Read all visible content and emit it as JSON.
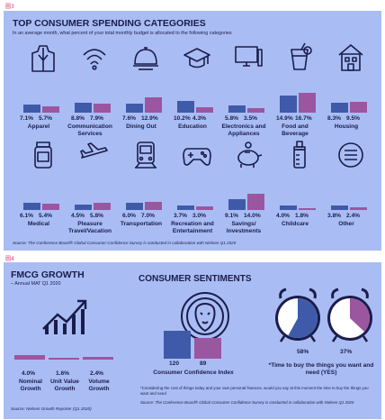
{
  "figure_labels": [
    "圖3",
    "圖4"
  ],
  "spending": {
    "title": "TOP CONSUMER SPENDING CATEGORIES",
    "subtitle": "In an average month, what percent of your total monthly budget is allocated to the following categories",
    "source": "Source: The Conference Board® Global Consumer Confidence Survey is conducted in collaboration with Nielsen Q1 2020"
  },
  "fmcg": {
    "title": "FMCG GROWTH",
    "subtitle": "– Annual MAT Q1 2020",
    "source": "Source: Nielsen Growth Reporter (Q1 2020)"
  },
  "sentiments": {
    "title": "CONSUMER SENTIMENTS",
    "cci_label": "Consumer Confidence Index",
    "time_label": "*Time to buy the things you want and need (YES)",
    "footnote": "*Considering the cost of things today and your own personal finances, would you say at this moment the time to buy the things you want and need",
    "source": "Source: The Conference Board® Global Consumer Confidence Survey is conducted in collaboration with Nielsen Q1 2020"
  },
  "colors": {
    "panel": "#a9bdf4",
    "series_1": "#3f5aa8",
    "series_2": "#9b56a0",
    "clock_bg": "#ffffff"
  },
  "chart_data": [
    {
      "type": "bar",
      "title": "TOP CONSUMER SPENDING CATEGORIES",
      "categories": [
        "Apparel",
        "Communication Services",
        "Dining Out",
        "Education",
        "Electronics and Appliances",
        "Food and Beverage",
        "Housing",
        "Medical",
        "Pleasure Travel/Vacation",
        "Transportation",
        "Recreation and Entertainment",
        "Savings/ Investments",
        "Childcare",
        "Other"
      ],
      "category_lines": [
        [
          "Apparel"
        ],
        [
          "Communication",
          "Services"
        ],
        [
          "Dining Out"
        ],
        [
          "Education"
        ],
        [
          "Electronics and",
          "Appliances"
        ],
        [
          "Food and",
          "Beverage"
        ],
        [
          "Housing"
        ],
        [
          "Medical"
        ],
        [
          "Pleasure",
          "Travel/Vacation"
        ],
        [
          "Transportation"
        ],
        [
          "Recreation and",
          "Entertainment"
        ],
        [
          "Savings/",
          "Investments"
        ],
        [
          "Childcare"
        ],
        [
          "Other"
        ]
      ],
      "icons": [
        "coat-icon",
        "wifi-icon",
        "cloche-icon",
        "graduation-cap-icon",
        "monitor-icon",
        "drink-icon",
        "house-icon",
        "pill-bottle-icon",
        "airplane-icon",
        "train-icon",
        "gamepad-icon",
        "piggy-bank-icon",
        "baby-bottle-icon",
        "menu-icon"
      ],
      "series": [
        {
          "values": [
            7.1,
            8.8,
            7.6,
            10.2,
            5.8,
            14.9,
            8.3,
            6.1,
            4.5,
            6.0,
            3.7,
            9.1,
            4.0,
            3.8
          ]
        },
        {
          "values": [
            5.7,
            7.9,
            12.9,
            4.3,
            3.5,
            16.7,
            9.5,
            5.4,
            5.8,
            7.0,
            3.0,
            14.0,
            1.8,
            2.4
          ]
        }
      ],
      "labels": [
        [
          "7.1%",
          "5.7%"
        ],
        [
          "8.8%",
          "7.9%"
        ],
        [
          "7.6%",
          "12.9%"
        ],
        [
          "10.2%",
          "4.3%"
        ],
        [
          "5.8%",
          "3.5%"
        ],
        [
          "14.9%",
          "16.7%"
        ],
        [
          "8.3%",
          "9.5%"
        ],
        [
          "6.1%",
          "5.4%"
        ],
        [
          "4.5%",
          "5.8%"
        ],
        [
          "6.0%",
          "7.0%"
        ],
        [
          "3.7%",
          "3.0%"
        ],
        [
          "9.1%",
          "14.0%"
        ],
        [
          "4.0%",
          "1.8%"
        ],
        [
          "3.8%",
          "2.4%"
        ]
      ],
      "unit": "%"
    },
    {
      "type": "bar",
      "title": "FMCG GROWTH",
      "categories": [
        "Nominal Growth",
        "Unit Value Growth",
        "Volume Growth"
      ],
      "category_lines": [
        [
          "Nominal",
          "Growth"
        ],
        [
          "Unit Value",
          "Growth"
        ],
        [
          "Volume",
          "Growth"
        ]
      ],
      "values": [
        4.0,
        1.6,
        2.4
      ],
      "labels": [
        "4.0%",
        "1.6%",
        "2.4%"
      ],
      "unit": "%"
    },
    {
      "type": "bar",
      "title": "Consumer Confidence Index",
      "values": [
        120,
        89
      ],
      "labels": [
        "120",
        "89"
      ]
    },
    {
      "type": "pie",
      "title": "*Time to buy the things you want and need (YES)",
      "values": [
        58,
        37
      ],
      "labels": [
        "58%",
        "37%"
      ],
      "unit": "%"
    }
  ]
}
